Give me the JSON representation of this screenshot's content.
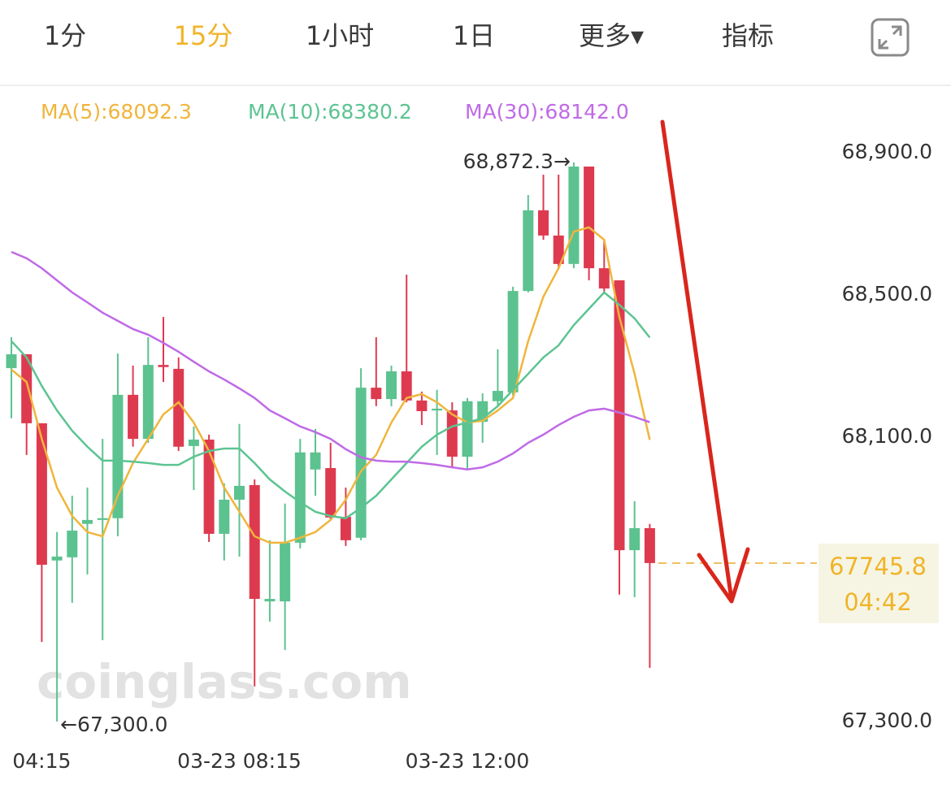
{
  "tabs": [
    "1分",
    "15分",
    "1小时",
    "1日",
    "更多▾",
    "指标"
  ],
  "active_tab": 1,
  "watermark": "coinglass.com",
  "chart_data": {
    "type": "candlestick",
    "categories": [
      null,
      null,
      "04:15",
      null,
      null,
      null,
      null,
      null,
      null,
      null,
      null,
      null,
      null,
      null,
      null,
      "03-23 08:15",
      null,
      null,
      null,
      null,
      null,
      null,
      null,
      null,
      null,
      null,
      null,
      null,
      null,
      null,
      "03-23 12:00",
      null,
      null,
      null,
      null,
      null,
      null,
      null,
      null,
      null,
      null,
      null,
      null
    ],
    "candles": {
      "open": [
        68294,
        68333,
        68139,
        67753,
        67762,
        67856,
        67867,
        67872,
        68219,
        68095,
        68303,
        68292,
        68075,
        68093,
        67828,
        67924,
        67965,
        67638,
        67638,
        67803,
        68009,
        68013,
        67876,
        67817,
        68239,
        68207,
        68285,
        68203,
        68175,
        68175,
        68045,
        68143,
        68201,
        68226,
        68511,
        68738,
        68667,
        68587,
        68861,
        68575,
        68541,
        67782,
        67844
      ],
      "high": [
        68381,
        68333,
        68139,
        67833,
        67935,
        67958,
        68095,
        68335,
        68301,
        68381,
        68438,
        68324,
        68130,
        68107,
        67970,
        68137,
        67981,
        67810,
        67913,
        68095,
        68123,
        68084,
        67958,
        68294,
        68381,
        68301,
        68557,
        68228,
        68233,
        68198,
        68210,
        68223,
        68347,
        68523,
        68781,
        68838,
        68838,
        68872.3,
        68861,
        68655,
        68541,
        67920,
        67856
      ],
      "low": [
        68153,
        68050,
        67524,
        67300,
        67634,
        67714,
        67529,
        67821,
        68073,
        68084,
        68255,
        68061,
        67951,
        67805,
        67753,
        67764,
        67399,
        67581,
        67501,
        67787,
        67935,
        67867,
        67794,
        67810,
        68187,
        68187,
        68198,
        68134,
        68050,
        68015,
        68011,
        68084,
        68187,
        68217,
        68507,
        68655,
        68575,
        68575,
        68541,
        68507,
        67657,
        67650,
        67451
      ],
      "close": [
        68333,
        68139,
        67741,
        67764,
        67837,
        67867,
        67872,
        68219,
        68095,
        68303,
        68297,
        68073,
        68093,
        67828,
        67924,
        67963,
        67645,
        67645,
        67803,
        68057,
        68057,
        67874,
        67810,
        68239,
        68207,
        68285,
        68203,
        68173,
        68180,
        68045,
        68201,
        68201,
        68230,
        68511,
        68738,
        68667,
        68587,
        68861,
        68575,
        68518,
        67782,
        67844,
        67745.8
      ]
    },
    "up_color": "#5cc28f",
    "down_color": "#de3a4f",
    "series": [
      {
        "name": "MA(5):68092.3",
        "color": "#f0b53c",
        "values": [
          68290,
          68255,
          68095,
          67958,
          67878,
          67833,
          67821,
          67935,
          68027,
          68095,
          68164,
          68198,
          68141,
          68061,
          67958,
          67890,
          67821,
          67803,
          67803,
          67817,
          67833,
          67867,
          67924,
          68004,
          68050,
          68141,
          68210,
          68221,
          68198,
          68164,
          68141,
          68146,
          68175,
          68210,
          68370,
          68495,
          68575,
          68678,
          68690,
          68655,
          68438,
          68278,
          68092.3
        ]
      },
      {
        "name": "MA(10):68380.2",
        "color": "#5cc492",
        "values": [
          68370,
          68324,
          68244,
          68175,
          68118,
          68073,
          68034,
          68034,
          68031,
          68027,
          68022,
          68022,
          68045,
          68061,
          68068,
          68068,
          68027,
          67981,
          67947,
          67917,
          67890,
          67878,
          67872,
          67901,
          67935,
          67981,
          68027,
          68073,
          68107,
          68130,
          68141,
          68153,
          68187,
          68233,
          68278,
          68324,
          68358,
          68415,
          68461,
          68507,
          68472,
          68434,
          68380.2
        ]
      },
      {
        "name": "MA(30):68142.0",
        "color": "#c06ae6",
        "values": [
          68621,
          68603,
          68575,
          68541,
          68507,
          68479,
          68450,
          68427,
          68404,
          68388,
          68365,
          68340,
          68312,
          68285,
          68262,
          68237,
          68210,
          68175,
          68153,
          68130,
          68114,
          68095,
          68066,
          68043,
          68034,
          68031,
          68031,
          68027,
          68022,
          68015,
          68009,
          68015,
          68031,
          68054,
          68084,
          68107,
          68134,
          68157,
          68175,
          68180,
          68169,
          68157,
          68142.0
        ]
      }
    ],
    "ylim": [
      67272.6,
      68986.6
    ],
    "yticks": [
      {
        "value": 68900,
        "label": "68,900.0"
      },
      {
        "value": 68500,
        "label": "68,500.0"
      },
      {
        "value": 68100,
        "label": "68,100.0"
      },
      {
        "value": 67300,
        "label": "67,300.0"
      }
    ],
    "grid": false,
    "annotations": [
      {
        "value": 68872.3,
        "label": "68,872.3→"
      },
      {
        "value": 67300,
        "label": "←67,300.0"
      }
    ],
    "last_price": 67745.8,
    "countdown": "04:42"
  }
}
